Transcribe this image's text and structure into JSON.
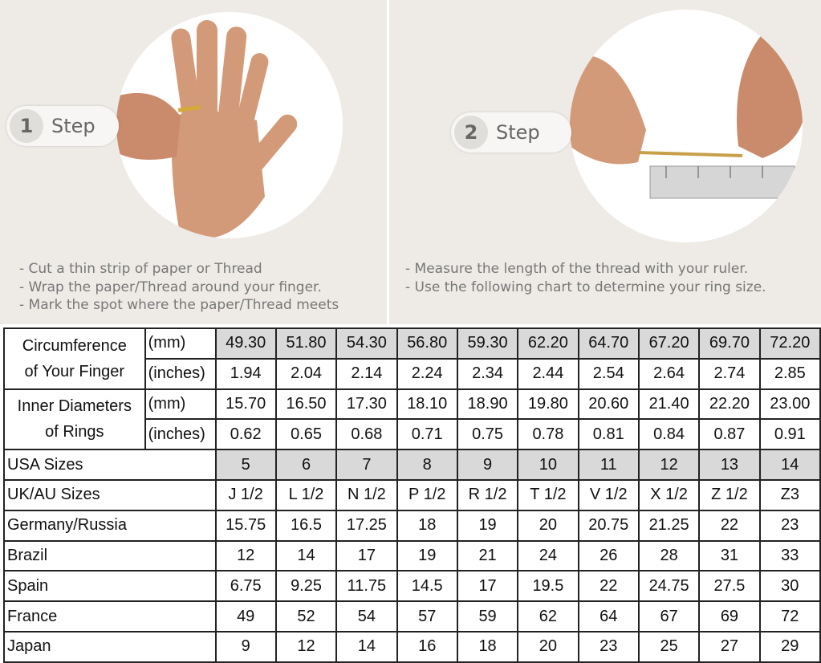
{
  "step1": {
    "number": "1",
    "label": "Step",
    "instructions": [
      "- Cut a thin strip of paper or Thread",
      "- Wrap the paper/Thread around your finger.",
      "- Mark the spot where the paper/Thread meets"
    ]
  },
  "step2": {
    "number": "2",
    "label": "Step",
    "instructions": [
      "- Measure the length of the thread with your ruler.",
      "- Use the following chart to determine your ring size."
    ]
  },
  "table": {
    "circumference": {
      "label_line1": "Circumference",
      "label_line2": "of Your Finger",
      "unit_mm": "(mm)",
      "unit_in": "(inches)",
      "mm": [
        "49.30",
        "51.80",
        "54.30",
        "56.80",
        "59.30",
        "62.20",
        "64.70",
        "67.20",
        "69.70",
        "72.20"
      ],
      "inches": [
        "1.94",
        "2.04",
        "2.14",
        "2.24",
        "2.34",
        "2.44",
        "2.54",
        "2.64",
        "2.74",
        "2.85"
      ]
    },
    "diameter": {
      "label_line1": "Inner Diameters",
      "label_line2": "of Rings",
      "unit_mm": "(mm)",
      "unit_in": "(inches)",
      "mm": [
        "15.70",
        "16.50",
        "17.30",
        "18.10",
        "18.90",
        "19.80",
        "20.60",
        "21.40",
        "22.20",
        "23.00"
      ],
      "inches": [
        "0.62",
        "0.65",
        "0.68",
        "0.71",
        "0.75",
        "0.78",
        "0.81",
        "0.84",
        "0.87",
        "0.91"
      ]
    },
    "rows": [
      {
        "label": "USA Sizes",
        "values": [
          "5",
          "6",
          "7",
          "8",
          "9",
          "10",
          "11",
          "12",
          "13",
          "14"
        ],
        "shaded": true
      },
      {
        "label": "UK/AU Sizes",
        "values": [
          "J 1/2",
          "L 1/2",
          "N 1/2",
          "P 1/2",
          "R 1/2",
          "T 1/2",
          "V 1/2",
          "X 1/2",
          "Z 1/2",
          "Z3"
        ]
      },
      {
        "label": "Germany/Russia",
        "values": [
          "15.75",
          "16.5",
          "17.25",
          "18",
          "19",
          "20",
          "20.75",
          "21.25",
          "22",
          "23"
        ]
      },
      {
        "label": "Brazil",
        "values": [
          "12",
          "14",
          "17",
          "19",
          "21",
          "24",
          "26",
          "28",
          "31",
          "33"
        ]
      },
      {
        "label": "Spain",
        "values": [
          "6.75",
          "9.25",
          "11.75",
          "14.5",
          "17",
          "19.5",
          "22",
          "24.75",
          "27.5",
          "30"
        ]
      },
      {
        "label": "France",
        "values": [
          "49",
          "52",
          "54",
          "57",
          "59",
          "62",
          "64",
          "67",
          "69",
          "72"
        ]
      },
      {
        "label": "Japan",
        "values": [
          "9",
          "12",
          "14",
          "16",
          "18",
          "20",
          "23",
          "25",
          "27",
          "29"
        ]
      }
    ]
  },
  "colors": {
    "panel_bg": "#eeebe7",
    "shaded_cell": "#d9d9d9",
    "text": "#777777"
  }
}
